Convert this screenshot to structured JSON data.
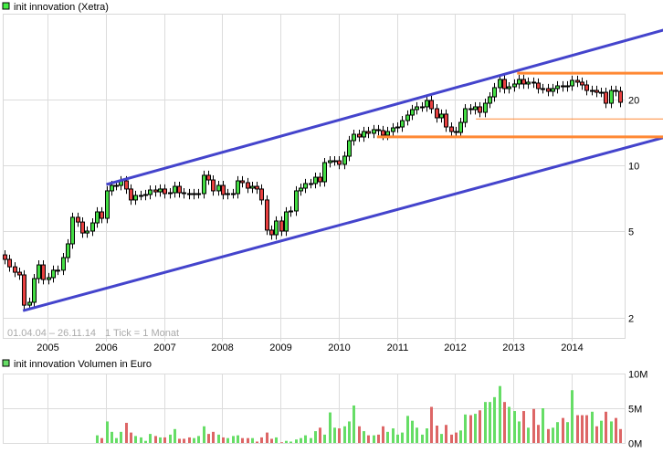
{
  "chart_data": [
    {
      "type": "candlestick",
      "title": "init innovation (Xetra)",
      "legend_color": "#44ee44",
      "date_range_note": "01.04.04 – 26.11.14",
      "tick_note": "1 Tick = 1 Monat",
      "scale": "log",
      "ylim": [
        1.7,
        49
      ],
      "y_ticks": [
        {
          "value": 20,
          "label": "20"
        },
        {
          "value": 10,
          "label": "10"
        },
        {
          "value": 5,
          "label": "5"
        },
        {
          "value": 2,
          "label": "2"
        }
      ],
      "x_ticks": [
        "2005",
        "2006",
        "2007",
        "2008",
        "2009",
        "2010",
        "2011",
        "2012",
        "2013",
        "2014"
      ],
      "x_start": "2004-04",
      "first_open": 3.89,
      "closes": [
        3.71,
        3.43,
        3.24,
        3.15,
        2.29,
        2.36,
        3.03,
        3.5,
        3.0,
        3.06,
        3.31,
        3.31,
        3.78,
        4.37,
        5.78,
        5.5,
        4.9,
        5.0,
        5.45,
        6.12,
        5.72,
        7.64,
        8.09,
        8.09,
        8.49,
        7.79,
        6.94,
        7.28,
        7.28,
        7.35,
        7.71,
        7.56,
        7.79,
        7.42,
        7.49,
        8.01,
        7.49,
        7.42,
        7.35,
        7.42,
        7.42,
        9.0,
        8.57,
        7.64,
        8.09,
        7.35,
        7.42,
        7.42,
        8.49,
        8.33,
        7.86,
        8.01,
        7.79,
        6.94,
        5.05,
        4.81,
        5.56,
        5.0,
        6.12,
        6.18,
        7.64,
        7.86,
        8.25,
        8.25,
        8.82,
        8.41,
        10.29,
        10.49,
        10.49,
        10.1,
        11.01,
        12.97,
        13.87,
        13.48,
        14.28,
        14.01,
        14.56,
        14.42,
        13.74,
        14.28,
        14.84,
        14.98,
        16.02,
        16.98,
        17.99,
        18.52,
        18.52,
        19.81,
        18.16,
        16.5,
        17.15,
        14.98,
        14.28,
        14.14,
        15.72,
        18.16,
        17.99,
        18.52,
        17.48,
        19.24,
        20.58,
        22.67,
        24.72,
        22.45,
        22.88,
        23.56,
        24.72,
        23.56,
        24.02,
        23.79,
        22.45,
        22.45,
        21.81,
        22.45,
        23.11,
        22.88,
        23.11,
        24.48,
        24.02,
        23.33,
        22.02,
        22.02,
        21.59,
        21.59,
        19.24,
        22.02,
        21.81,
        19.43
      ],
      "colors": {
        "up": "#44dd44",
        "down": "#e84040",
        "trend_channel": "#4444cc",
        "levels": "#ff8833"
      },
      "trend_lines": [
        {
          "name": "upper-channel",
          "from": [
            21,
            8.17
          ],
          "to": [
            135.9,
            41.6
          ]
        },
        {
          "name": "lower-channel",
          "from": [
            3.8,
            2.16
          ],
          "to": [
            135.9,
            13.4
          ]
        }
      ],
      "horizontal_levels": [
        {
          "price": 26.4,
          "from_month_index": 105.7,
          "weight": "thick"
        },
        {
          "price": 16.3,
          "from_month_index": 97.2,
          "weight": "thin"
        },
        {
          "price": 13.5,
          "from_month_index": 76.8,
          "weight": "thick"
        }
      ]
    },
    {
      "type": "bar",
      "title": "init innovation Volumen in Euro",
      "legend_color": "#66dd66",
      "unit": "M EUR",
      "ylim": [
        0,
        10
      ],
      "y_ticks": [
        {
          "value": 10,
          "label": "10M"
        },
        {
          "value": 5,
          "label": "5M"
        },
        {
          "value": 0,
          "label": "0M"
        }
      ],
      "values": [
        null,
        null,
        null,
        null,
        null,
        null,
        null,
        null,
        null,
        null,
        null,
        null,
        null,
        null,
        null,
        null,
        null,
        null,
        null,
        1.1,
        0.7,
        3.1,
        1.6,
        0.7,
        1.6,
        2.9,
        1.5,
        1.0,
        0.8,
        0.3,
        1.3,
        1.0,
        0.8,
        0.8,
        1.2,
        2.0,
        0.6,
        0.6,
        0.8,
        0.7,
        1.0,
        2.4,
        1.3,
        1.6,
        1.2,
        0.8,
        0.7,
        1.0,
        1.1,
        0.7,
        0.7,
        0.7,
        0.2,
        0.8,
        1.5,
        0.6,
        0.8,
        0.1,
        0.3,
        0.2,
        0.5,
        0.7,
        1.1,
        0.7,
        1.7,
        2.2,
        1.2,
        4.4,
        2.2,
        2.1,
        2.4,
        3.1,
        5.4,
        2.4,
        1.7,
        1.1,
        1.1,
        1.2,
        2.4,
        1.6,
        2.1,
        1.2,
        1.5,
        3.9,
        3.2,
        2.2,
        1.2,
        2.1,
        5.2,
        2.5,
        1.3,
        2.6,
        1.2,
        1.5,
        1.8,
        4.1,
        4.0,
        4.2,
        4.7,
        5.9,
        5.9,
        6.6,
        8.2,
        5.9,
        5.2,
        4.6,
        3.1,
        4.6,
        2.2,
        4.9,
        2.6,
        5.0,
        2.0,
        2.2,
        3.0,
        3.6,
        3.0,
        7.6,
        4.0,
        4.0,
        4.0,
        4.5,
        2.4,
        3.2,
        4.5,
        3.1,
        3.6,
        2.0
      ]
    }
  ]
}
